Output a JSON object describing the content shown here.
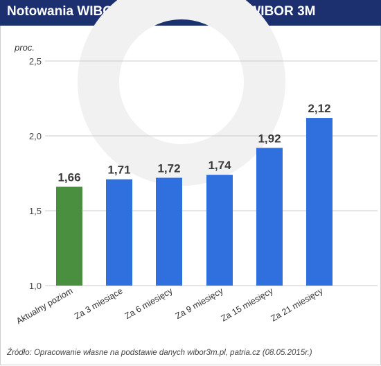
{
  "title": "Notowania WIBOR 3M i kontraktów na WIBOR 3M",
  "source": "Źródło: Opracowanie własne na podstawie danych wibor3m.pl, patria.cz (08.05.2015r.)",
  "colors": {
    "header": "#1c2f6e",
    "current": "#4a8f3f",
    "futures": "#2f6fde",
    "grid": "#cccccc"
  },
  "chart_data": {
    "type": "bar",
    "categories": [
      "Aktualny poziom",
      "Za 3 miesiące",
      "Za 6 miesięcy",
      "Za 9 miesięcy",
      "Za 15 miesięcy",
      "Za 21 miesięcy"
    ],
    "values": [
      1.66,
      1.71,
      1.72,
      1.74,
      1.92,
      2.12
    ],
    "value_labels": [
      "1,66",
      "1,71",
      "1,72",
      "1,74",
      "1,92",
      "2,12"
    ],
    "bar_colors": [
      "#4a8f3f",
      "#2f6fde",
      "#2f6fde",
      "#2f6fde",
      "#2f6fde",
      "#2f6fde"
    ],
    "ylabel": "proc.",
    "ylim": [
      1.0,
      2.5
    ],
    "yticks": [
      1.0,
      1.5,
      2.0,
      2.5
    ],
    "ytick_labels": [
      "1,0",
      "1,5",
      "2,0",
      "2,5"
    ],
    "grid": true
  }
}
